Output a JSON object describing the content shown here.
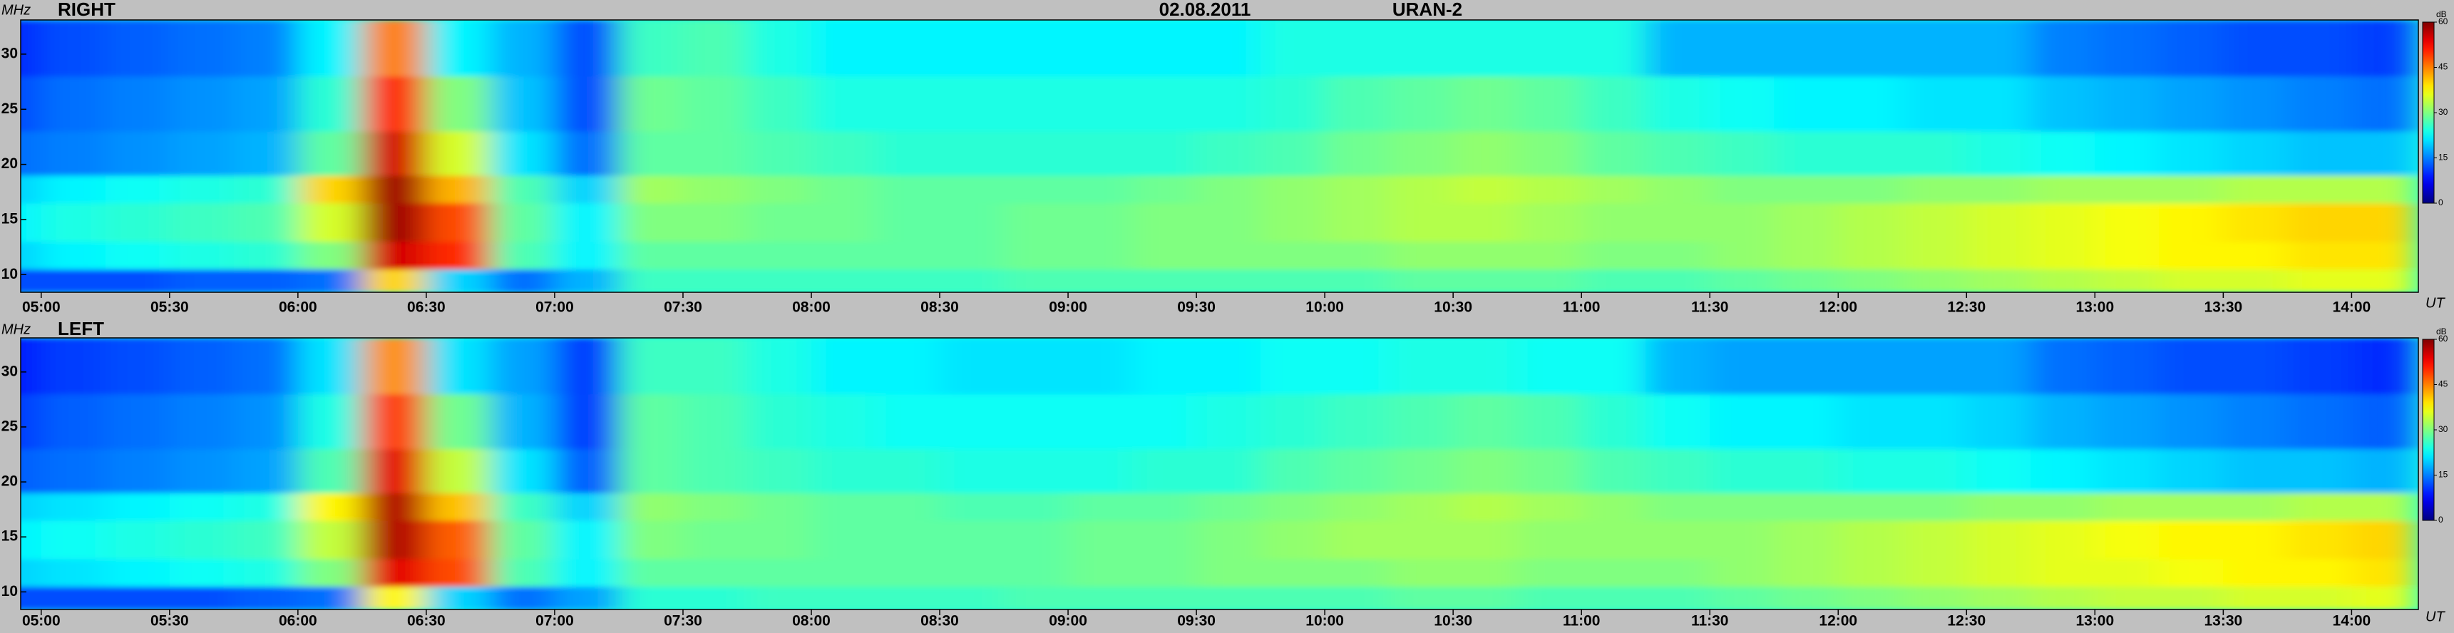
{
  "header": {
    "date": "02.08.2011",
    "instrument": "URAN-2"
  },
  "chart_data": [
    {
      "type": "heatmap",
      "title": "RIGHT",
      "ylabel": "MHz",
      "xlabel": "UT",
      "x": [
        4.875,
        5.125,
        5.375,
        5.625,
        5.875,
        6.125,
        6.375,
        6.625,
        6.875,
        7.125,
        7.375,
        7.625,
        7.875,
        8.125,
        8.375,
        8.625,
        8.875,
        9.125,
        9.375,
        9.625,
        9.875,
        10.125,
        10.375,
        10.625,
        10.875,
        11.125,
        11.375,
        11.625,
        11.875,
        12.125,
        12.375,
        12.625,
        12.875,
        13.125,
        13.375,
        13.625,
        13.875,
        14.125
      ],
      "ybins": [
        8.4,
        10.5,
        13,
        16.5,
        19,
        23,
        28,
        33.1
      ],
      "z": [
        [
          12,
          12,
          12,
          13,
          13,
          14,
          40,
          20,
          14,
          18,
          26,
          26,
          26,
          26,
          26,
          26,
          27,
          27,
          27,
          27,
          27,
          27,
          28,
          28,
          28,
          27,
          27,
          28,
          29,
          30,
          31,
          32,
          33,
          34,
          35,
          35,
          36,
          36
        ],
        [
          20,
          22,
          23,
          24,
          25,
          30,
          55,
          50,
          27,
          22,
          28,
          28,
          28,
          28,
          28,
          28,
          29,
          29,
          30,
          30,
          30,
          30,
          31,
          31,
          31,
          30,
          30,
          31,
          32,
          33,
          34,
          35,
          36,
          37,
          38,
          38,
          39,
          39
        ],
        [
          22,
          24,
          25,
          26,
          27,
          35,
          58,
          48,
          28,
          22,
          30,
          30,
          29,
          29,
          28,
          28,
          29,
          29,
          30,
          30,
          31,
          32,
          33,
          33,
          32,
          31,
          31,
          31,
          32,
          33,
          34,
          35,
          36,
          37,
          38,
          39,
          40,
          40
        ],
        [
          20,
          22,
          23,
          24,
          25,
          40,
          58,
          42,
          27,
          20,
          32,
          31,
          30,
          29,
          28,
          28,
          28,
          28,
          29,
          30,
          31,
          32,
          33,
          34,
          33,
          32,
          31,
          30,
          30,
          30,
          31,
          31,
          32,
          32,
          32,
          33,
          33,
          33
        ],
        [
          14,
          15,
          16,
          17,
          18,
          28,
          55,
          35,
          21,
          14,
          28,
          28,
          27,
          26,
          25,
          25,
          25,
          25,
          25,
          26,
          27,
          29,
          30,
          31,
          30,
          28,
          27,
          26,
          25,
          25,
          25,
          24,
          23,
          22,
          21,
          20,
          19,
          19
        ],
        [
          12,
          14,
          15,
          16,
          17,
          25,
          50,
          30,
          19,
          12,
          29,
          28,
          26,
          24,
          24,
          24,
          24,
          24,
          24,
          24,
          25,
          27,
          28,
          29,
          28,
          26,
          24,
          23,
          22,
          22,
          21,
          21,
          19,
          18,
          17,
          16,
          15,
          14
        ],
        [
          10,
          12,
          13,
          14,
          15,
          22,
          45,
          22,
          18,
          12,
          26,
          27,
          24,
          22,
          22,
          22,
          22,
          22,
          22,
          22,
          24,
          24,
          24,
          24,
          24,
          24,
          18,
          18,
          18,
          18,
          18,
          18,
          15,
          14,
          13,
          12,
          12,
          11
        ]
      ],
      "xlim": [
        4.92,
        14.26
      ],
      "xticks": [
        {
          "value": 5,
          "label": "05:00"
        },
        {
          "value": 5.5,
          "label": "05:30"
        },
        {
          "value": 6,
          "label": "06:00"
        },
        {
          "value": 6.5,
          "label": "06:30"
        },
        {
          "value": 7,
          "label": "07:00"
        },
        {
          "value": 7.5,
          "label": "07:30"
        },
        {
          "value": 8,
          "label": "08:00"
        },
        {
          "value": 8.5,
          "label": "08:30"
        },
        {
          "value": 9,
          "label": "09:00"
        },
        {
          "value": 9.5,
          "label": "09:30"
        },
        {
          "value": 10,
          "label": "10:00"
        },
        {
          "value": 10.5,
          "label": "10:30"
        },
        {
          "value": 11,
          "label": "11:00"
        },
        {
          "value": 11.5,
          "label": "11:30"
        },
        {
          "value": 12,
          "label": "12:00"
        },
        {
          "value": 12.5,
          "label": "12:30"
        },
        {
          "value": 13,
          "label": "13:00"
        },
        {
          "value": 13.5,
          "label": "13:30"
        },
        {
          "value": 14,
          "label": "14:00"
        }
      ],
      "ylim": [
        8.4,
        33.1
      ],
      "yticks": [
        10,
        15,
        20,
        25,
        30
      ],
      "colorbar": {
        "label": "dB",
        "clim": [
          0,
          60
        ],
        "ticks": [
          0,
          15,
          30,
          45,
          60
        ],
        "colormap": "jet"
      }
    },
    {
      "type": "heatmap",
      "title": "LEFT",
      "ylabel": "MHz",
      "xlabel": "UT",
      "x": [
        4.875,
        5.125,
        5.375,
        5.625,
        5.875,
        6.125,
        6.375,
        6.625,
        6.875,
        7.125,
        7.375,
        7.625,
        7.875,
        8.125,
        8.375,
        8.625,
        8.875,
        9.125,
        9.375,
        9.625,
        9.875,
        10.125,
        10.375,
        10.625,
        10.875,
        11.125,
        11.375,
        11.625,
        11.875,
        12.125,
        12.375,
        12.625,
        12.875,
        13.125,
        13.375,
        13.625,
        13.875,
        14.125
      ],
      "ybins": [
        8.4,
        10.5,
        13,
        16.5,
        19,
        23,
        28,
        33.1
      ],
      "z": [
        [
          12,
          12,
          12,
          12,
          13,
          14,
          38,
          20,
          14,
          17,
          25,
          25,
          26,
          26,
          26,
          26,
          27,
          27,
          27,
          27,
          27,
          27,
          28,
          28,
          27,
          27,
          27,
          28,
          29,
          30,
          31,
          32,
          33,
          34,
          34,
          35,
          35,
          36
        ],
        [
          20,
          21,
          22,
          23,
          24,
          30,
          54,
          48,
          27,
          22,
          28,
          28,
          28,
          28,
          28,
          28,
          28,
          29,
          29,
          30,
          30,
          30,
          31,
          31,
          30,
          30,
          30,
          31,
          32,
          33,
          34,
          35,
          36,
          36,
          37,
          38,
          38,
          39
        ],
        [
          22,
          23,
          24,
          25,
          26,
          34,
          57,
          47,
          28,
          22,
          30,
          29,
          29,
          28,
          28,
          28,
          28,
          29,
          29,
          30,
          31,
          32,
          32,
          32,
          31,
          31,
          31,
          31,
          32,
          33,
          34,
          35,
          36,
          37,
          38,
          38,
          39,
          40
        ],
        [
          20,
          21,
          22,
          23,
          24,
          38,
          57,
          41,
          26,
          20,
          31,
          30,
          29,
          28,
          28,
          27,
          27,
          28,
          28,
          29,
          30,
          31,
          32,
          33,
          32,
          31,
          30,
          30,
          30,
          30,
          30,
          31,
          31,
          32,
          32,
          32,
          33,
          33
        ],
        [
          13,
          14,
          15,
          16,
          17,
          27,
          54,
          34,
          21,
          13,
          28,
          27,
          26,
          25,
          25,
          24,
          24,
          24,
          25,
          25,
          27,
          28,
          29,
          30,
          29,
          27,
          26,
          25,
          25,
          24,
          24,
          23,
          22,
          21,
          20,
          19,
          19,
          18
        ],
        [
          11,
          13,
          14,
          15,
          16,
          24,
          49,
          29,
          18,
          11,
          28,
          27,
          25,
          24,
          23,
          23,
          23,
          23,
          23,
          24,
          25,
          26,
          27,
          28,
          27,
          25,
          23,
          22,
          22,
          21,
          21,
          20,
          18,
          17,
          16,
          15,
          14,
          13
        ],
        [
          9,
          11,
          12,
          13,
          14,
          21,
          44,
          21,
          17,
          11,
          26,
          26,
          24,
          22,
          22,
          21,
          21,
          21,
          22,
          22,
          23,
          23,
          24,
          24,
          23,
          23,
          18,
          17,
          17,
          17,
          17,
          17,
          14,
          13,
          12,
          12,
          11,
          10
        ]
      ],
      "xlim": [
        4.92,
        14.26
      ],
      "xticks": [
        {
          "value": 5,
          "label": "05:00"
        },
        {
          "value": 5.5,
          "label": "05:30"
        },
        {
          "value": 6,
          "label": "06:00"
        },
        {
          "value": 6.5,
          "label": "06:30"
        },
        {
          "value": 7,
          "label": "07:00"
        },
        {
          "value": 7.5,
          "label": "07:30"
        },
        {
          "value": 8,
          "label": "08:00"
        },
        {
          "value": 8.5,
          "label": "08:30"
        },
        {
          "value": 9,
          "label": "09:00"
        },
        {
          "value": 9.5,
          "label": "09:30"
        },
        {
          "value": 10,
          "label": "10:00"
        },
        {
          "value": 10.5,
          "label": "10:30"
        },
        {
          "value": 11,
          "label": "11:00"
        },
        {
          "value": 11.5,
          "label": "11:30"
        },
        {
          "value": 12,
          "label": "12:00"
        },
        {
          "value": 12.5,
          "label": "12:30"
        },
        {
          "value": 13,
          "label": "13:00"
        },
        {
          "value": 13.5,
          "label": "13:30"
        },
        {
          "value": 14,
          "label": "14:00"
        }
      ],
      "ylim": [
        8.4,
        33.1
      ],
      "yticks": [
        10,
        15,
        20,
        25,
        30
      ],
      "colorbar": {
        "label": "dB",
        "clim": [
          0,
          60
        ],
        "ticks": [
          0,
          15,
          30,
          45,
          60
        ],
        "colormap": "jet"
      }
    }
  ]
}
